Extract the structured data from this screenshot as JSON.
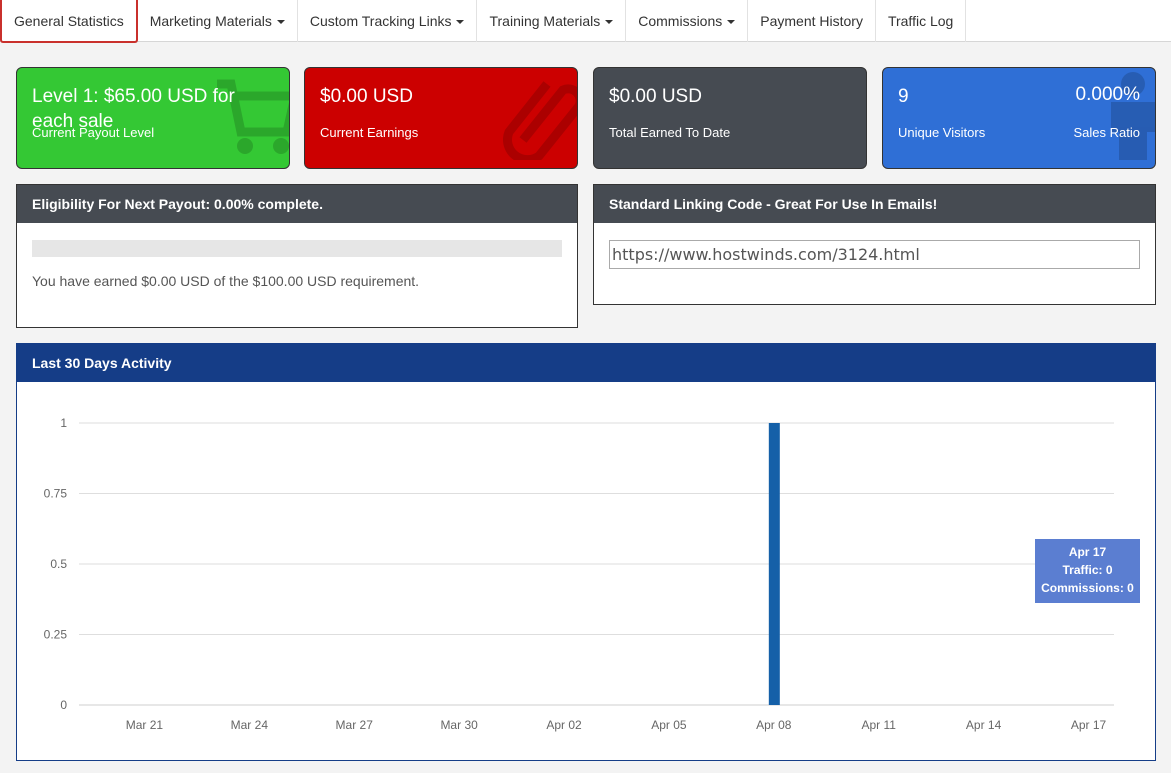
{
  "tabs": [
    {
      "label": "General Statistics",
      "dropdown": false,
      "active": true
    },
    {
      "label": "Marketing Materials",
      "dropdown": true
    },
    {
      "label": "Custom Tracking Links",
      "dropdown": true
    },
    {
      "label": "Training Materials",
      "dropdown": true
    },
    {
      "label": "Commissions",
      "dropdown": true
    },
    {
      "label": "Payment History",
      "dropdown": false
    },
    {
      "label": "Traffic Log",
      "dropdown": false
    }
  ],
  "stats": {
    "payout": {
      "value": "Level 1: $65.00 USD for each sale",
      "label": "Current Payout Level",
      "icon": "cart-icon",
      "color": "#34c834"
    },
    "earnings": {
      "value": "$0.00 USD",
      "label": "Current Earnings",
      "icon": "paperclip-icon",
      "color": "#cc0000"
    },
    "total": {
      "value": "$0.00 USD",
      "label": "Total Earned To Date",
      "color": "#464b52"
    },
    "visitors": {
      "value": "9",
      "label": "Unique Visitors",
      "ratio_value": "0.000%",
      "ratio_label": "Sales Ratio",
      "icon": "user-icon",
      "color": "#2f6fd6"
    }
  },
  "eligibility": {
    "title": "Eligibility For Next Payout: 0.00% complete.",
    "progress": 0,
    "text": "You have earned $0.00 USD of the $100.00 USD requirement."
  },
  "linking": {
    "title": "Standard Linking Code - Great For Use In Emails!",
    "value": "https://www.hostwinds.com/3124.html"
  },
  "activity": {
    "title": "Last 30 Days Activity",
    "tooltip": {
      "date": "Apr 17",
      "traffic": "Traffic: 0",
      "commissions": "Commissions: 0"
    }
  },
  "chart_data": {
    "type": "bar",
    "title": "",
    "ylim": [
      0,
      1
    ],
    "yticks": [
      "0",
      "0.25",
      "0.5",
      "0.75",
      "1"
    ],
    "xtick_labels": [
      "Mar 21",
      "Mar 24",
      "Mar 27",
      "Mar 30",
      "Apr 02",
      "Apr 05",
      "Apr 08",
      "Apr 11",
      "Apr 14",
      "Apr 17"
    ],
    "categories": [
      "Mar 19",
      "Mar 20",
      "Mar 21",
      "Mar 22",
      "Mar 23",
      "Mar 24",
      "Mar 25",
      "Mar 26",
      "Mar 27",
      "Mar 28",
      "Mar 29",
      "Mar 30",
      "Mar 31",
      "Apr 01",
      "Apr 02",
      "Apr 03",
      "Apr 04",
      "Apr 05",
      "Apr 06",
      "Apr 07",
      "Apr 08",
      "Apr 09",
      "Apr 10",
      "Apr 11",
      "Apr 12",
      "Apr 13",
      "Apr 14",
      "Apr 15",
      "Apr 16",
      "Apr 17"
    ],
    "series": [
      {
        "name": "Traffic",
        "color": "#1560a8",
        "values": [
          0,
          0,
          0,
          0,
          0,
          0,
          0,
          0,
          0,
          0,
          0,
          0,
          0,
          0,
          0,
          0,
          0,
          0,
          0,
          0,
          1,
          0,
          0,
          0,
          0,
          0,
          0,
          0,
          0,
          0
        ]
      }
    ],
    "grid": true
  }
}
